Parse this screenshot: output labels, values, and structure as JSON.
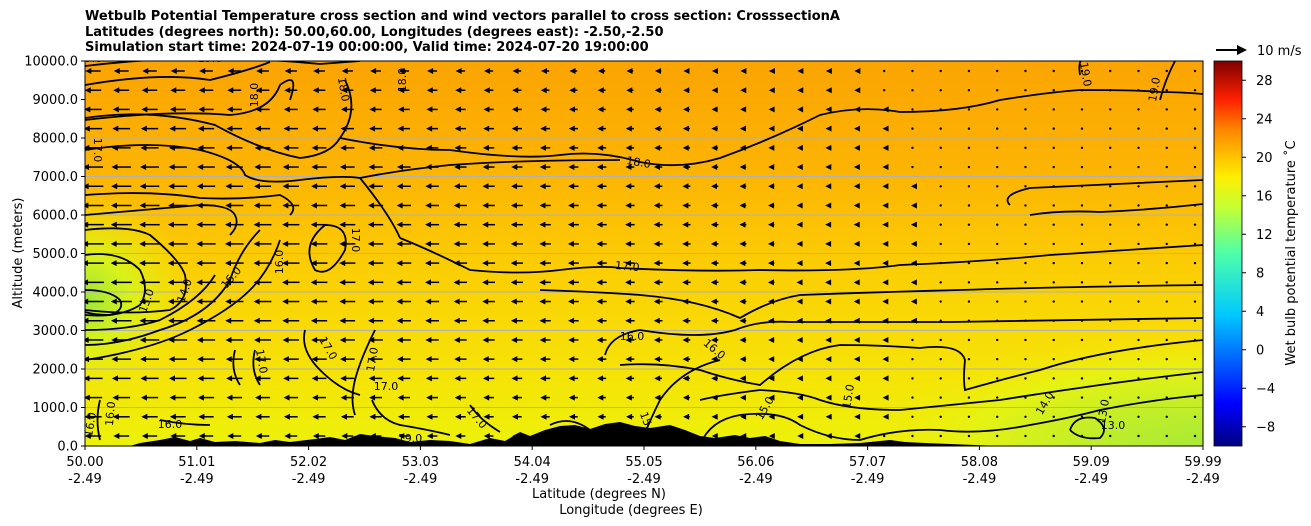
{
  "chart_data": {
    "type": "heatmap",
    "title_lines": [
      "Wetbulb Potential Temperature cross section and wind vectors parallel to cross section: CrosssectionA",
      "Latitudes (degrees north): 50.00,60.00, Longitudes (degrees east): -2.50,-2.50",
      "Simulation start time: 2024-07-19 00:00:00, Valid time: 2024-07-20 19:00:00"
    ],
    "xlabel": "Latitude (degrees N)",
    "xlabel2": "Longitude (degrees E)",
    "ylabel": "Altitude (meters)",
    "ylim": [
      0,
      10000
    ],
    "yticks": [
      "0.0",
      "1000.0",
      "2000.0",
      "3000.0",
      "4000.0",
      "5000.0",
      "6000.0",
      "7000.0",
      "8000.0",
      "9000.0",
      "10000.0"
    ],
    "xlim": [
      50.0,
      59.99
    ],
    "xticks_lat": [
      "50.00",
      "51.01",
      "52.02",
      "53.03",
      "54.04",
      "55.05",
      "56.06",
      "57.07",
      "58.08",
      "59.09",
      "59.99"
    ],
    "xticks_lon": [
      "-2.49",
      "-2.49",
      "-2.49",
      "-2.49",
      "-2.49",
      "-2.49",
      "-2.49",
      "-2.49",
      "-2.49",
      "-2.49",
      "-2.49"
    ],
    "grid": "horizontal",
    "colorbar": {
      "label": "Wet bulb potential temperature ˚C",
      "range": [
        -10,
        30
      ],
      "ticks": [
        "-8",
        "-4",
        "0",
        "4",
        "8",
        "12",
        "16",
        "20",
        "24",
        "28"
      ],
      "colormap": "jet"
    },
    "vector_key": "10 m/s",
    "contour_labels": [
      "19.0",
      "18.0",
      "17.0",
      "16.0",
      "15.0",
      "14.0",
      "13.0"
    ]
  }
}
